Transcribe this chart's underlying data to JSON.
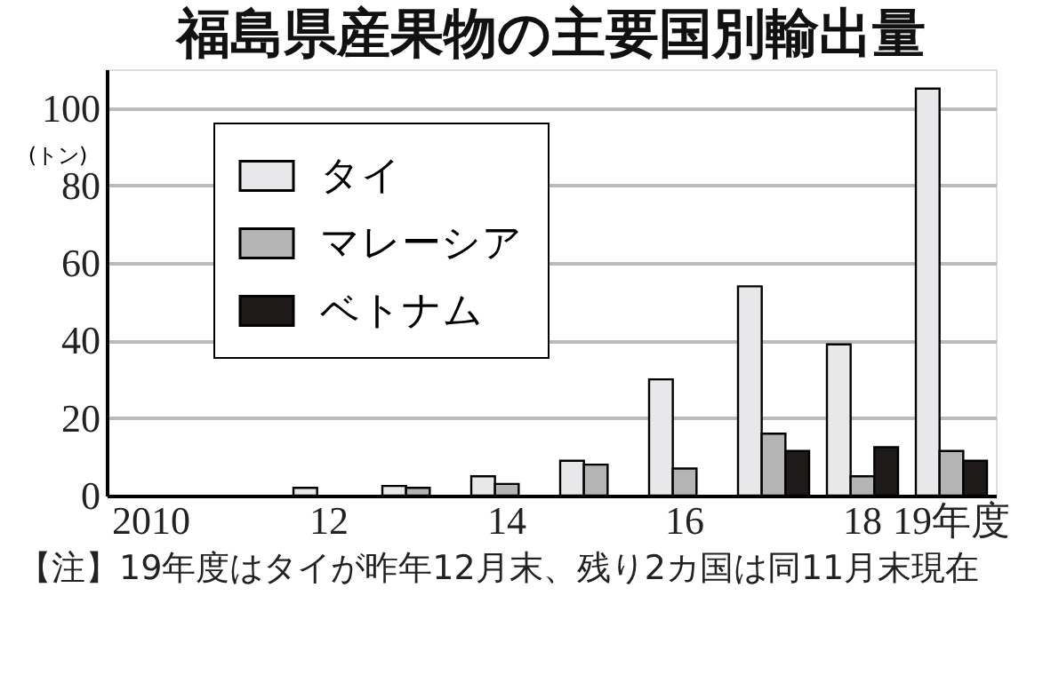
{
  "chart_data": {
    "type": "bar",
    "title": "福島県産果物の主要国別輸出量",
    "ylabel": "(トン)",
    "categories": [
      "2010",
      null,
      "12",
      null,
      "14",
      null,
      "16",
      null,
      "18",
      "19年度"
    ],
    "series": [
      {
        "name": "タイ",
        "color": "#e8e8ea",
        "values": [
          null,
          null,
          2,
          2.5,
          5,
          9,
          30,
          54,
          39,
          105
        ]
      },
      {
        "name": "マレーシア",
        "color": "#b4b4b4",
        "values": [
          null,
          null,
          null,
          2,
          3,
          8,
          7,
          16,
          5,
          11.5
        ]
      },
      {
        "name": "ベトナム",
        "color": "#1e1a1a",
        "values": [
          null,
          null,
          null,
          null,
          null,
          null,
          null,
          11.5,
          12.5,
          9
        ]
      }
    ],
    "ylim": [
      0,
      110
    ],
    "yticks": [
      0,
      20,
      40,
      60,
      80,
      100
    ],
    "grid": "y",
    "legend": "top left",
    "annotations": [
      "【注】19年度はタイが昨年12月末、残り2カ国は同11月末現在"
    ]
  }
}
